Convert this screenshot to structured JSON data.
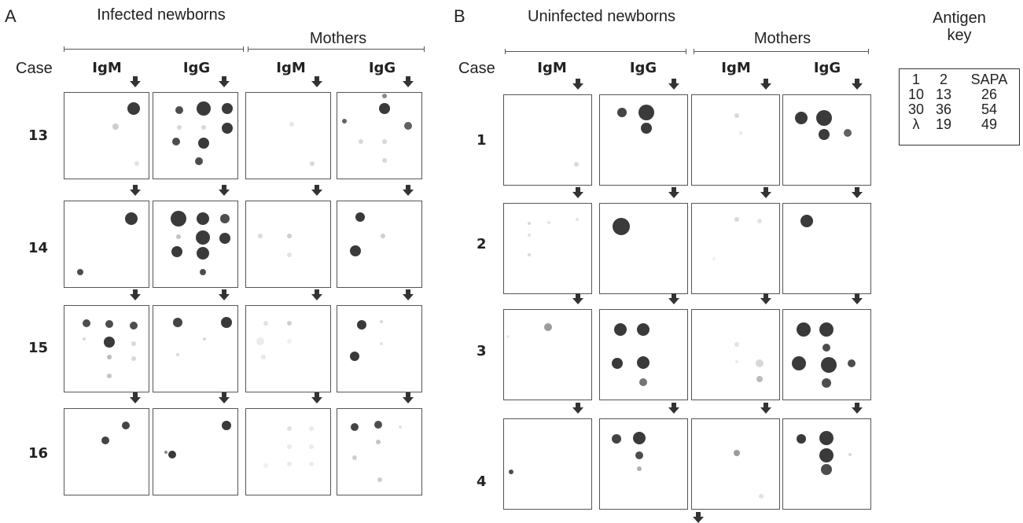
{
  "panels": [
    {
      "letter": "A",
      "group_left": "Infected newborns",
      "group_right": "Mothers",
      "case_header": "Case",
      "columns": [
        "IgM",
        "IgG",
        "IgM",
        "IgG"
      ],
      "cases": [
        "13",
        "14",
        "15",
        "16"
      ]
    },
    {
      "letter": "B",
      "group_left": "Uninfected newborns",
      "group_right": "Mothers",
      "case_header": "Case",
      "columns": [
        "IgM",
        "IgG",
        "IgM",
        "IgG"
      ],
      "cases": [
        "1",
        "2",
        "3",
        "4"
      ]
    }
  ],
  "antigen_key": {
    "title": "Antigen key",
    "rows": [
      [
        "1",
        "2",
        "SAPA"
      ],
      [
        "10",
        "13",
        "26"
      ],
      [
        "30",
        "36",
        "54"
      ],
      [
        "λ",
        "19",
        "49"
      ]
    ]
  },
  "colors": {
    "spot": "#3a3a3a",
    "frame": "#555555",
    "arrow": "#333333"
  }
}
